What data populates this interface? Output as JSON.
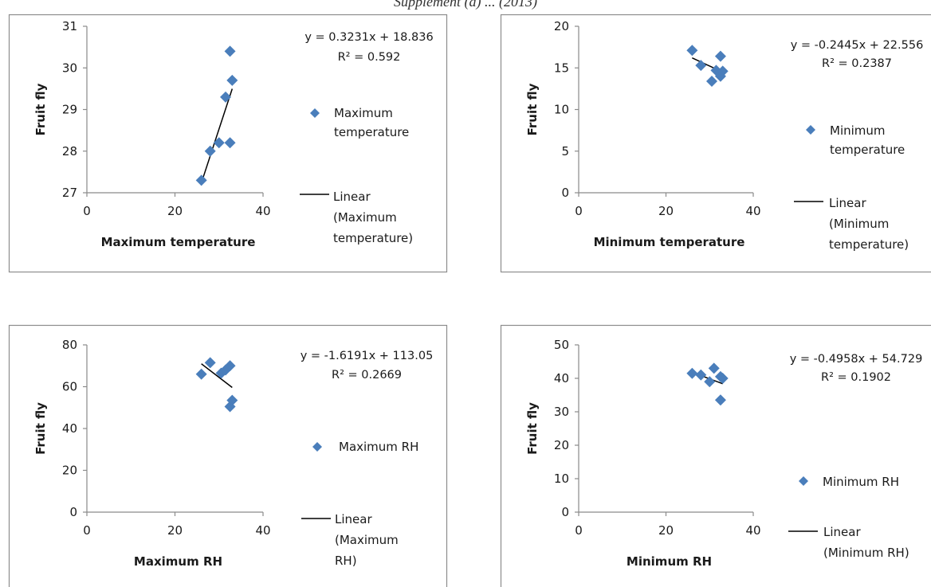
{
  "caption": "Supplement (a) ... (2013)",
  "colors": {
    "marker": "#4a7ebb",
    "trendline": "#000000",
    "axis": "#8a8a8a"
  },
  "chart_data": [
    {
      "type": "scatter",
      "xlabel": "Maximum temperature",
      "ylabel": "Fruit fly",
      "xlim": [
        0,
        40
      ],
      "ylim": [
        27,
        31
      ],
      "xticks": [
        "0",
        "20",
        "40"
      ],
      "yticks": [
        "27",
        "28",
        "29",
        "30",
        "31"
      ],
      "x": [
        26,
        28,
        30,
        31.5,
        32.5,
        32.5,
        33
      ],
      "y": [
        27.3,
        28.0,
        28.2,
        29.3,
        30.4,
        28.2,
        29.7
      ],
      "trendline": {
        "slope": 0.3231,
        "intercept": 18.836
      },
      "equation": "y = 0.3231x + 18.836",
      "r2": "R² = 0.592",
      "legend": {
        "series": [
          "Maximum",
          "temperature"
        ],
        "linear": [
          "Linear",
          "(Maximum",
          "temperature)"
        ]
      }
    },
    {
      "type": "scatter",
      "xlabel": "Minimum temperature",
      "ylabel": "Fruit fly",
      "xlim": [
        0,
        40
      ],
      "ylim": [
        0,
        20
      ],
      "xticks": [
        "0",
        "20",
        "40"
      ],
      "yticks": [
        "0",
        "5",
        "10",
        "15",
        "20"
      ],
      "x": [
        26,
        28,
        30.5,
        31.5,
        32.5,
        32.5,
        33
      ],
      "y": [
        17.1,
        15.3,
        13.4,
        14.7,
        16.4,
        14.0,
        14.6
      ],
      "trendline": {
        "slope": -0.2445,
        "intercept": 22.556
      },
      "equation": "y = -0.2445x + 22.556",
      "r2": "R² = 0.2387",
      "legend": {
        "series": [
          "Minimum",
          "temperature"
        ],
        "linear": [
          "Linear",
          "(Minimum",
          "temperature)"
        ]
      }
    },
    {
      "type": "scatter",
      "xlabel": "Maximum RH",
      "ylabel": "Fruit fly",
      "xlim": [
        0,
        40
      ],
      "ylim": [
        0,
        80
      ],
      "xticks": [
        "0",
        "20",
        "40"
      ],
      "yticks": [
        "0",
        "20",
        "40",
        "60",
        "80"
      ],
      "x": [
        26,
        28,
        30.5,
        31.5,
        32.5,
        32.5,
        33
      ],
      "y": [
        66,
        71.5,
        66.5,
        68,
        70,
        50.5,
        53.5
      ],
      "trendline": {
        "slope": -1.6191,
        "intercept": 113.05
      },
      "equation": "y = -1.6191x + 113.05",
      "r2": "R² = 0.2669",
      "legend": {
        "series": [
          "Maximum RH"
        ],
        "linear": [
          "Linear",
          "(Maximum",
          "RH)"
        ]
      }
    },
    {
      "type": "scatter",
      "xlabel": "Minimum RH",
      "ylabel": "Fruit fly",
      "xlim": [
        0,
        40
      ],
      "ylim": [
        0,
        50
      ],
      "xticks": [
        "0",
        "20",
        "40"
      ],
      "yticks": [
        "0",
        "10",
        "20",
        "30",
        "40",
        "50"
      ],
      "x": [
        26,
        28,
        30,
        31,
        32.5,
        32.5,
        33
      ],
      "y": [
        41.5,
        41.0,
        39.0,
        43.0,
        40.5,
        33.5,
        40.0
      ],
      "trendline": {
        "slope": -0.4958,
        "intercept": 54.729
      },
      "equation": "y = -0.4958x + 54.729",
      "r2": "R² = 0.1902",
      "legend": {
        "series": [
          "Minimum RH"
        ],
        "linear": [
          "Linear",
          "(Minimum RH)"
        ]
      }
    }
  ]
}
